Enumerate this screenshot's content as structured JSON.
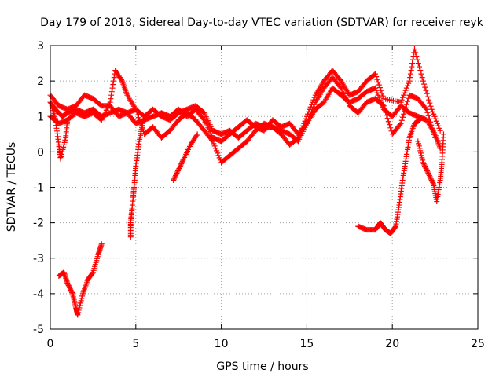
{
  "chart_data": {
    "type": "scatter",
    "title": "Day 179 of 2018, Sidereal Day-to-day VTEC variation (SDTVAR) for receiver reyk",
    "xlabel": "GPS time / hours",
    "ylabel": "SDTVAR / TECUs",
    "xlim": [
      0,
      25
    ],
    "ylim": [
      -5,
      3
    ],
    "xticks": [
      0,
      5,
      10,
      15,
      20,
      25
    ],
    "yticks": [
      -5,
      -4,
      -3,
      -2,
      -1,
      0,
      1,
      2,
      3
    ],
    "grid": true,
    "legend": "none",
    "marker": "+",
    "color": "#ff0000",
    "series": [
      {
        "name": "trace-1",
        "points": [
          [
            0,
            1.4
          ],
          [
            0.3,
            1.2
          ],
          [
            0.7,
            1.0
          ],
          [
            1.0,
            1.1
          ],
          [
            1.5,
            1.2
          ],
          [
            2.0,
            1.1
          ],
          [
            2.5,
            1.2
          ],
          [
            3.0,
            1.0
          ],
          [
            3.5,
            1.1
          ],
          [
            4.0,
            1.2
          ],
          [
            4.5,
            1.1
          ],
          [
            5.0,
            1.2
          ],
          [
            5.5,
            1.0
          ],
          [
            6.0,
            1.2
          ],
          [
            6.5,
            1.0
          ],
          [
            7.0,
            0.9
          ],
          [
            7.5,
            1.1
          ],
          [
            8.0,
            1.2
          ],
          [
            8.5,
            1.3
          ],
          [
            9.0,
            1.1
          ],
          [
            9.5,
            0.6
          ],
          [
            10.0,
            0.5
          ],
          [
            10.5,
            0.6
          ],
          [
            11.0,
            0.4
          ],
          [
            11.5,
            0.6
          ],
          [
            12.0,
            0.8
          ],
          [
            12.5,
            0.7
          ],
          [
            13.0,
            0.7
          ],
          [
            13.5,
            0.6
          ],
          [
            14.0,
            0.5
          ],
          [
            14.5,
            0.3
          ],
          [
            15.0,
            0.8
          ],
          [
            15.5,
            1.2
          ],
          [
            16.0,
            1.4
          ],
          [
            16.5,
            1.8
          ],
          [
            17.0,
            1.6
          ],
          [
            17.5,
            1.4
          ],
          [
            18.0,
            1.5
          ],
          [
            18.5,
            1.7
          ],
          [
            19.0,
            1.8
          ],
          [
            19.5,
            1.2
          ],
          [
            20.0,
            1.0
          ],
          [
            20.5,
            1.3
          ],
          [
            21.0,
            1.1
          ],
          [
            21.5,
            1.0
          ],
          [
            22.0,
            0.9
          ],
          [
            22.5,
            0.5
          ],
          [
            22.8,
            0.1
          ]
        ]
      },
      {
        "name": "trace-2",
        "points": [
          [
            0,
            1.6
          ],
          [
            0.5,
            1.3
          ],
          [
            1.0,
            1.2
          ],
          [
            1.5,
            1.3
          ],
          [
            2.0,
            1.6
          ],
          [
            2.5,
            1.5
          ],
          [
            3.0,
            1.3
          ],
          [
            3.5,
            1.3
          ],
          [
            4.0,
            1.0
          ],
          [
            4.5,
            1.1
          ],
          [
            5.0,
            0.8
          ],
          [
            5.5,
            0.9
          ],
          [
            6.0,
            1.0
          ],
          [
            6.5,
            1.1
          ],
          [
            7.0,
            1.0
          ],
          [
            7.5,
            1.2
          ],
          [
            8.0,
            1.0
          ],
          [
            8.5,
            1.2
          ],
          [
            9.0,
            0.9
          ],
          [
            9.5,
            0.4
          ],
          [
            10.0,
            0.3
          ],
          [
            10.5,
            0.5
          ],
          [
            11.0,
            0.7
          ],
          [
            11.5,
            0.9
          ],
          [
            12.0,
            0.7
          ],
          [
            12.5,
            0.6
          ],
          [
            13.0,
            0.9
          ],
          [
            13.5,
            0.7
          ],
          [
            14.0,
            0.8
          ],
          [
            14.5,
            0.5
          ],
          [
            15.0,
            0.8
          ],
          [
            15.5,
            1.4
          ],
          [
            16.0,
            1.8
          ],
          [
            16.5,
            2.1
          ],
          [
            17.0,
            1.8
          ],
          [
            17.5,
            1.3
          ],
          [
            18.0,
            1.1
          ],
          [
            18.5,
            1.4
          ],
          [
            19.0,
            1.5
          ],
          [
            19.5,
            1.3
          ],
          [
            20.0,
            0.5
          ],
          [
            20.5,
            0.8
          ],
          [
            21.0,
            1.6
          ],
          [
            21.5,
            1.5
          ],
          [
            22.0,
            1.2
          ],
          [
            22.5,
            0.4
          ]
        ]
      },
      {
        "name": "trace-3",
        "points": [
          [
            0,
            1.0
          ],
          [
            0.5,
            0.8
          ],
          [
            1.0,
            0.9
          ],
          [
            1.5,
            1.1
          ],
          [
            2.0,
            1.0
          ],
          [
            2.5,
            1.1
          ],
          [
            3.0,
            0.9
          ],
          [
            3.5,
            1.4
          ],
          [
            3.8,
            2.3
          ],
          [
            4.2,
            2.0
          ],
          [
            4.5,
            1.6
          ],
          [
            5.0,
            1.2
          ],
          [
            5.5,
            0.5
          ],
          [
            6.0,
            0.7
          ],
          [
            6.5,
            0.4
          ],
          [
            7.0,
            0.6
          ],
          [
            7.5,
            0.9
          ],
          [
            8.0,
            1.1
          ],
          [
            8.5,
            0.9
          ],
          [
            9.0,
            0.6
          ],
          [
            9.5,
            0.3
          ],
          [
            10.0,
            -0.3
          ],
          [
            10.5,
            -0.1
          ],
          [
            11.0,
            0.1
          ],
          [
            11.5,
            0.3
          ],
          [
            12.0,
            0.6
          ],
          [
            12.5,
            0.8
          ],
          [
            13.0,
            0.7
          ],
          [
            13.5,
            0.5
          ],
          [
            14.0,
            0.2
          ],
          [
            14.5,
            0.4
          ],
          [
            15.0,
            1.0
          ],
          [
            15.5,
            1.6
          ],
          [
            16.0,
            2.0
          ],
          [
            16.5,
            2.3
          ],
          [
            17.0,
            2.0
          ],
          [
            17.5,
            1.6
          ],
          [
            18.0,
            1.7
          ],
          [
            18.5,
            2.0
          ],
          [
            19.0,
            2.2
          ],
          [
            19.5,
            1.5
          ],
          [
            20.5,
            1.4
          ],
          [
            21.0,
            2.0
          ],
          [
            21.3,
            2.9
          ],
          [
            21.8,
            2.0
          ],
          [
            22.3,
            1.2
          ],
          [
            22.8,
            0.6
          ]
        ]
      },
      {
        "name": "trace-4",
        "points": [
          [
            0.5,
            -3.5
          ],
          [
            0.8,
            -3.4
          ],
          [
            1.0,
            -3.7
          ],
          [
            1.3,
            -4.0
          ],
          [
            1.5,
            -4.4
          ],
          [
            1.6,
            -4.6
          ],
          [
            1.9,
            -4.0
          ],
          [
            2.2,
            -3.6
          ],
          [
            2.5,
            -3.4
          ],
          [
            2.8,
            -2.9
          ],
          [
            3.0,
            -2.6
          ]
        ]
      },
      {
        "name": "trace-5",
        "points": [
          [
            4.7,
            -2.4
          ],
          [
            4.7,
            -2.0
          ],
          [
            4.8,
            -1.5
          ],
          [
            4.9,
            -1.0
          ],
          [
            5.0,
            -0.4
          ],
          [
            5.2,
            0.3
          ],
          [
            5.4,
            0.8
          ]
        ]
      },
      {
        "name": "trace-6",
        "points": [
          [
            7.2,
            -0.8
          ],
          [
            7.5,
            -0.5
          ],
          [
            7.8,
            -0.2
          ],
          [
            8.2,
            0.2
          ],
          [
            8.6,
            0.5
          ]
        ]
      },
      {
        "name": "trace-7",
        "points": [
          [
            18.0,
            -2.1
          ],
          [
            18.5,
            -2.2
          ],
          [
            19.0,
            -2.2
          ],
          [
            19.3,
            -2.0
          ],
          [
            19.6,
            -2.2
          ],
          [
            19.9,
            -2.3
          ],
          [
            20.2,
            -2.1
          ],
          [
            20.4,
            -1.5
          ],
          [
            20.6,
            -0.8
          ],
          [
            20.8,
            -0.2
          ],
          [
            21.0,
            0.4
          ],
          [
            21.3,
            0.8
          ],
          [
            21.6,
            0.9
          ]
        ]
      },
      {
        "name": "trace-8",
        "points": [
          [
            21.5,
            0.3
          ],
          [
            21.8,
            -0.3
          ],
          [
            22.1,
            -0.6
          ],
          [
            22.4,
            -0.9
          ],
          [
            22.6,
            -1.4
          ],
          [
            22.8,
            -0.8
          ],
          [
            22.9,
            -0.3
          ],
          [
            23.0,
            0.5
          ]
        ]
      },
      {
        "name": "trace-9",
        "points": [
          [
            0.1,
            1.3
          ],
          [
            0.3,
            0.9
          ],
          [
            0.5,
            0.2
          ],
          [
            0.6,
            -0.2
          ],
          [
            0.9,
            0.4
          ],
          [
            1.0,
            0.9
          ]
        ]
      }
    ]
  }
}
